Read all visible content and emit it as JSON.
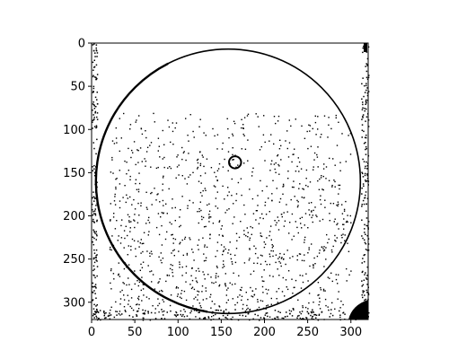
{
  "chart_data": {
    "type": "heatmap",
    "title": "",
    "xlabel": "",
    "ylabel": "",
    "xlim": [
      0,
      320
    ],
    "ylim": [
      320,
      0
    ],
    "y_axis_inverted": true,
    "grid": false,
    "colormap": "binary",
    "x_ticks": [
      0,
      50,
      100,
      150,
      200,
      250,
      300
    ],
    "y_ticks": [
      0,
      50,
      100,
      150,
      200,
      250,
      300
    ],
    "features": {
      "ring": {
        "center": [
          158,
          160
        ],
        "radius": 153,
        "rim_side": "left"
      },
      "small_circle": {
        "center": [
          166,
          138
        ],
        "radius": 7
      },
      "speckle_region": {
        "x": [
          20,
          300
        ],
        "y": [
          80,
          320
        ]
      },
      "dark_corner": "bottom-right"
    }
  }
}
